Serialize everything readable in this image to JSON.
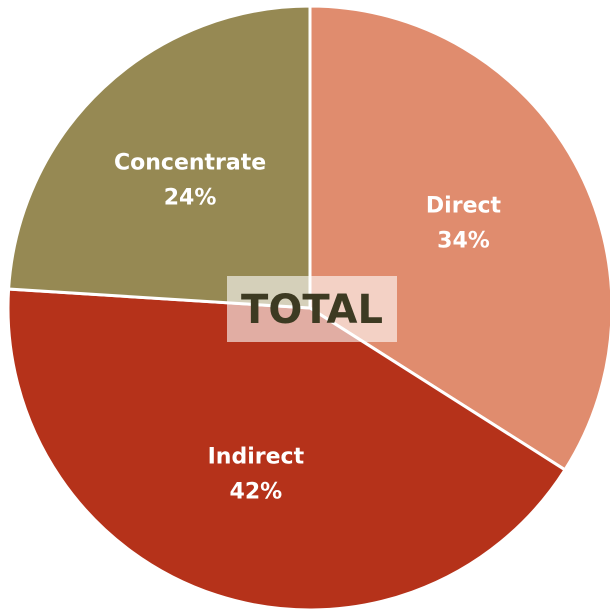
{
  "chart_data": {
    "type": "pie",
    "categories": [
      "Direct",
      "Indirect",
      "Concentrate"
    ],
    "values": [
      34,
      42,
      24
    ],
    "value_labels": [
      "34%",
      "42%",
      "24%"
    ],
    "colors": [
      "#e08c6e",
      "#b5321a",
      "#968953"
    ],
    "center_label": "TOTAL"
  }
}
